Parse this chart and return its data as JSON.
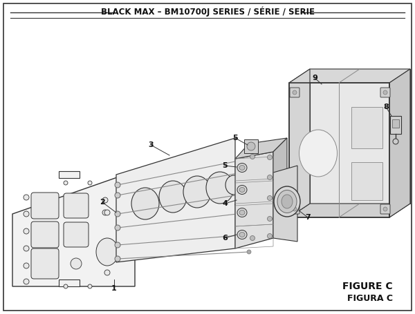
{
  "title": "BLACK MAX – BM10700J SERIES / SÉRIE / SERIE",
  "figure_label": "FIGURE C",
  "figura_label": "FIGURA C",
  "bg_color": "#ffffff",
  "title_fontsize": 8.5,
  "label_fontsize": 8.0,
  "fig_label_fontsize": 10,
  "fig_label_fontsize2": 9
}
